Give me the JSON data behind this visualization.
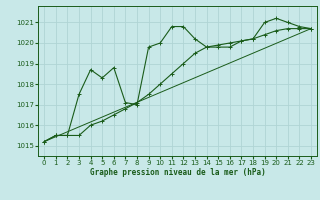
{
  "title": "Graphe pression niveau de la mer (hPa)",
  "bg_color": "#c8e8e8",
  "grid_color": "#b0d4d4",
  "line_color": "#1a5c1a",
  "xlim": [
    -0.5,
    23.5
  ],
  "ylim": [
    1014.5,
    1021.8
  ],
  "yticks": [
    1015,
    1016,
    1017,
    1018,
    1019,
    1020,
    1021
  ],
  "xticks": [
    0,
    1,
    2,
    3,
    4,
    5,
    6,
    7,
    8,
    9,
    10,
    11,
    12,
    13,
    14,
    15,
    16,
    17,
    18,
    19,
    20,
    21,
    22,
    23
  ],
  "series1": {
    "x": [
      0,
      1,
      2,
      3,
      4,
      5,
      6,
      7,
      8,
      9,
      10,
      11,
      12,
      13,
      14,
      15,
      16,
      17,
      18,
      19,
      20,
      21,
      22,
      23
    ],
    "y": [
      1015.2,
      1015.5,
      1015.5,
      1017.5,
      1018.7,
      1018.3,
      1018.8,
      1017.1,
      1017.0,
      1019.8,
      1020.0,
      1020.8,
      1020.8,
      1020.2,
      1019.8,
      1019.8,
      1019.8,
      1020.1,
      1020.2,
      1021.0,
      1021.2,
      1021.0,
      1020.8,
      1020.7
    ]
  },
  "series2": {
    "x": [
      0,
      1,
      2,
      3,
      4,
      5,
      6,
      7,
      8,
      9,
      10,
      11,
      12,
      13,
      14,
      15,
      16,
      17,
      18,
      19,
      20,
      21,
      22,
      23
    ],
    "y": [
      1015.2,
      1015.5,
      1015.5,
      1015.5,
      1016.0,
      1016.2,
      1016.5,
      1016.8,
      1017.1,
      1017.5,
      1018.0,
      1018.5,
      1019.0,
      1019.5,
      1019.8,
      1019.9,
      1020.0,
      1020.1,
      1020.2,
      1020.4,
      1020.6,
      1020.7,
      1020.7,
      1020.7
    ]
  },
  "series3": {
    "x": [
      0,
      23
    ],
    "y": [
      1015.2,
      1020.7
    ]
  }
}
